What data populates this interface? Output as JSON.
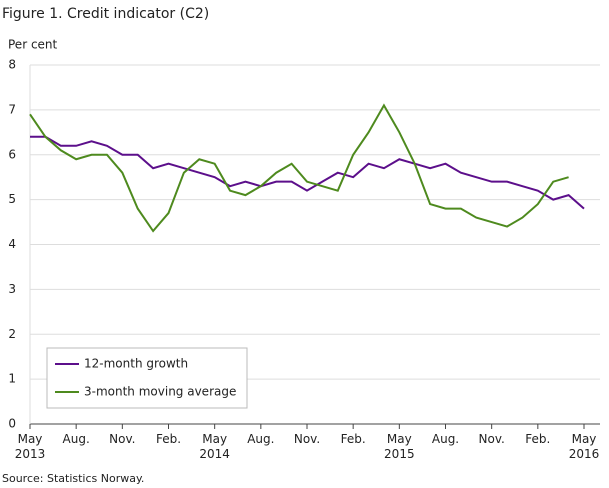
{
  "chart_data": {
    "type": "line",
    "title": "Figure 1. Credit indicator (C2)",
    "y_label": "Per cent",
    "source": "Source: Statistics Norway.",
    "categories": [
      "May 2013",
      null,
      null,
      "Aug.",
      null,
      null,
      "Nov.",
      null,
      null,
      "Feb.",
      null,
      null,
      "May 2014",
      null,
      null,
      "Aug.",
      null,
      null,
      "Nov.",
      null,
      null,
      "Feb.",
      null,
      null,
      "May 2015",
      null,
      null,
      "Aug.",
      null,
      null,
      "Nov.",
      null,
      null,
      "Feb.",
      null,
      null,
      "May 2016"
    ],
    "series": [
      {
        "name": "12-month growth",
        "color": "#5c0f8b",
        "values": [
          6.4,
          6.4,
          6.2,
          6.2,
          6.3,
          6.2,
          6.0,
          6.0,
          5.7,
          5.8,
          5.7,
          5.6,
          5.5,
          5.3,
          5.4,
          5.3,
          5.4,
          5.4,
          5.2,
          5.4,
          5.6,
          5.5,
          5.8,
          5.7,
          5.9,
          5.8,
          5.7,
          5.8,
          5.6,
          5.5,
          5.4,
          5.4,
          5.3,
          5.2,
          5.0,
          5.1,
          4.8
        ]
      },
      {
        "name": "3-month moving average",
        "color": "#4e8a1e",
        "values": [
          6.9,
          6.4,
          6.1,
          5.9,
          6.0,
          6.0,
          5.6,
          4.8,
          4.3,
          4.7,
          5.6,
          5.9,
          5.8,
          5.2,
          5.1,
          5.3,
          5.6,
          5.8,
          5.4,
          5.3,
          5.2,
          6.0,
          6.5,
          7.1,
          6.5,
          5.8,
          4.9,
          4.8,
          4.8,
          4.6,
          4.5,
          4.4,
          4.6,
          4.9,
          5.4,
          5.5,
          null
        ]
      }
    ],
    "ylim": [
      0,
      8
    ],
    "yticks": [
      0,
      1,
      2,
      3,
      4,
      5,
      6,
      7,
      8
    ],
    "grid": true,
    "legend": "lower left"
  }
}
